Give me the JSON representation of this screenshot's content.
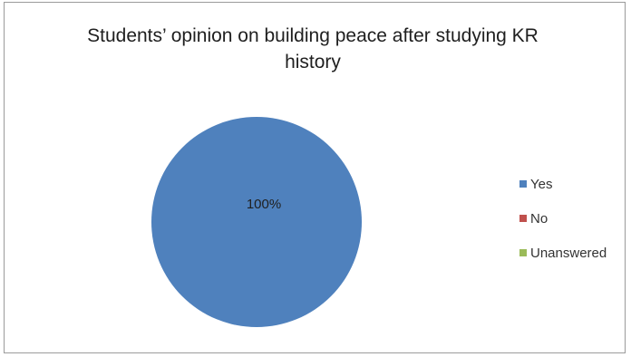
{
  "chart_data": {
    "type": "pie",
    "title": "Students’ opinion on building peace after studying KR history",
    "title_lines": [
      "Students’ opinion on building peace after studying KR",
      "history"
    ],
    "categories": [
      "Yes",
      "No",
      "Unanswered"
    ],
    "values": [
      100,
      0,
      0
    ],
    "data_labels": [
      "100%"
    ],
    "colors": [
      "#4f81bd",
      "#c0504d",
      "#9bbb59"
    ],
    "legend_position": "right"
  }
}
